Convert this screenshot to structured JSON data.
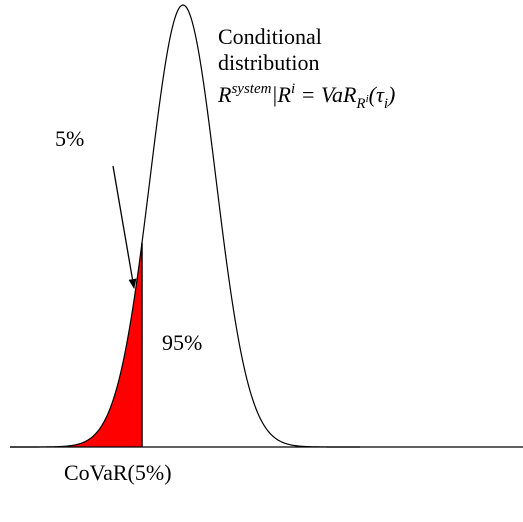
{
  "labels": {
    "title_line1": "Conditional",
    "title_line2": "distribution",
    "tail_share": "5%",
    "body_share": "95%",
    "quantile": "CoVaR(5%)"
  },
  "formula": [
    {
      "text": "R",
      "sup": "system"
    },
    {
      "text": "|R",
      "sup": "i"
    },
    {
      "text": " = VaR",
      "sub": "R",
      "subsup": "i"
    },
    {
      "text": "(τ",
      "sub": "i"
    },
    {
      "text": ")"
    }
  ]
}
